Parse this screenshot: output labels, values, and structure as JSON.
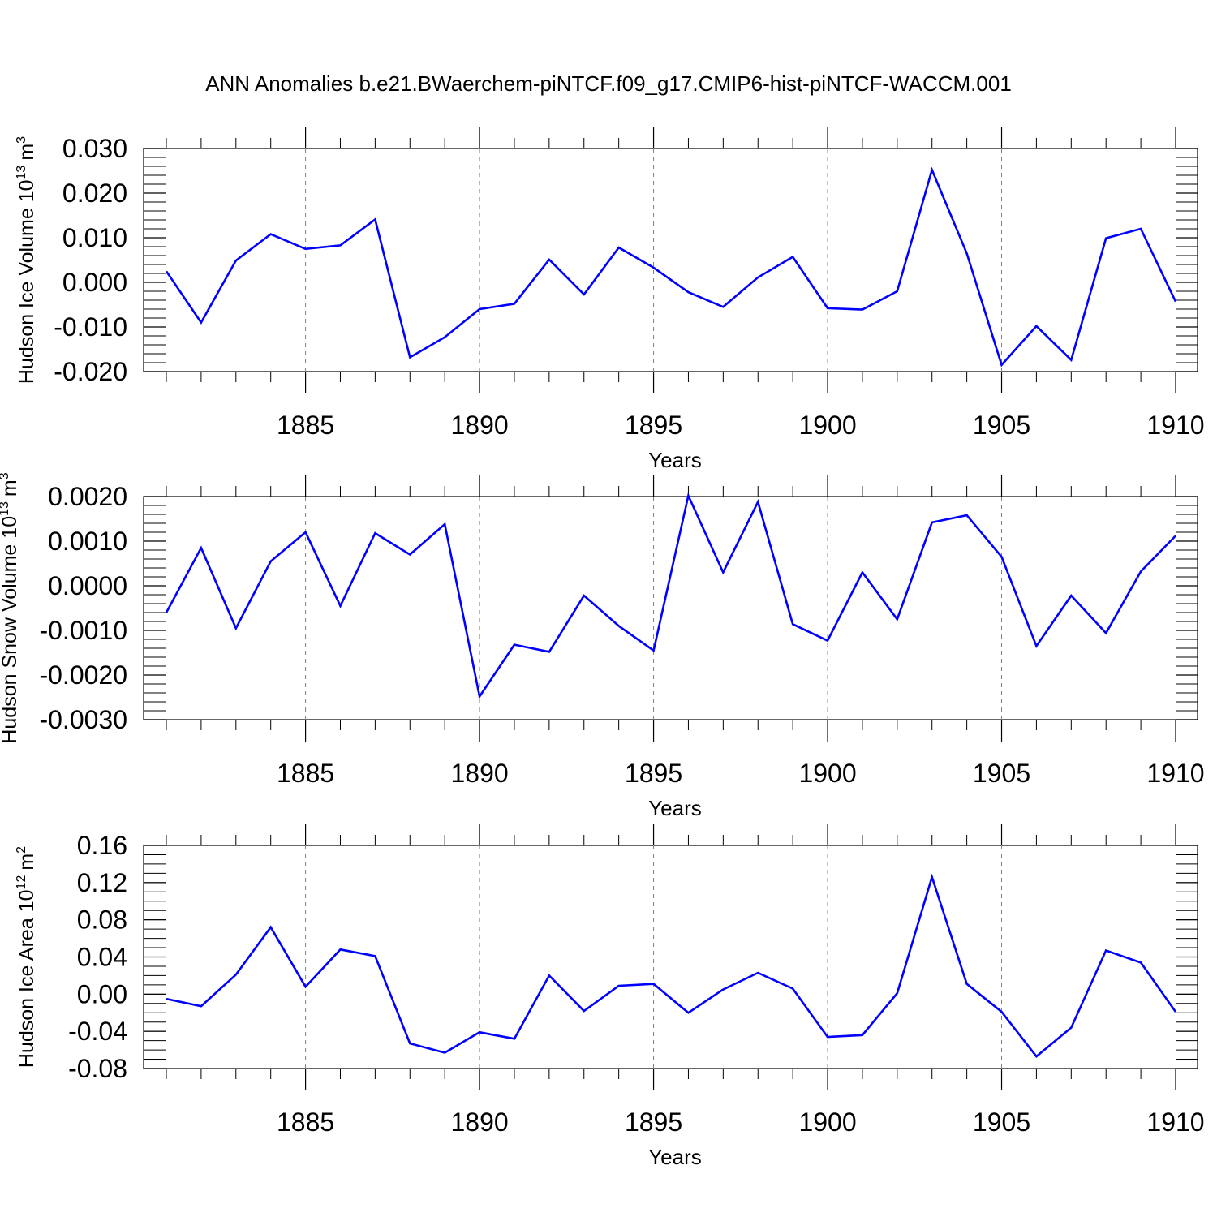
{
  "title": "ANN Anomalies b.e21.BWaerchem-piNTCF.f09_g17.CMIP6-hist-piNTCF-WACCM.001",
  "colors": {
    "line": "#0000ff",
    "axis": "#000000",
    "grid": "#808080"
  },
  "chart_data": [
    {
      "type": "line",
      "ylabel": "Hudson Ice Volume",
      "yunit_base": "10",
      "yunit_exp": "13",
      "yunit_m": "m",
      "yunit_pow": "3",
      "xlabel": "Years",
      "xlim": [
        1880.6,
        1910
      ],
      "ylim": [
        -0.02,
        0.03
      ],
      "x_ticks": [
        1885,
        1890,
        1895,
        1900,
        1905,
        1910
      ],
      "x_tick_labels": [
        "1885",
        "1890",
        "1895",
        "1900",
        "1905",
        "1910"
      ],
      "y_ticks": [
        0.03,
        0.02,
        0.01,
        0.0,
        -0.01,
        -0.02
      ],
      "y_tick_labels": [
        "0.030",
        "0.020",
        "0.010",
        "0.000",
        "-0.010",
        "-0.020"
      ],
      "y_minor_step": 0.002,
      "grid": "vertical dashed at major x ticks",
      "series": [
        {
          "name": "Hudson Ice Volume",
          "x": [
            1881,
            1882,
            1883,
            1884,
            1885,
            1886,
            1887,
            1888,
            1889,
            1890,
            1891,
            1892,
            1893,
            1894,
            1895,
            1896,
            1897,
            1898,
            1899,
            1900,
            1901,
            1902,
            1903,
            1904,
            1905,
            1906,
            1907,
            1908,
            1909,
            1910
          ],
          "y": [
            0.0025,
            -0.009,
            0.0049,
            0.0108,
            0.0075,
            0.0083,
            0.0141,
            -0.0168,
            -0.0123,
            -0.006,
            -0.0048,
            0.0051,
            -0.0027,
            0.0078,
            0.0033,
            -0.0022,
            -0.0055,
            0.0011,
            0.0057,
            -0.0058,
            -0.0061,
            -0.002,
            0.0252,
            0.0065,
            -0.0185,
            -0.0098,
            -0.0174,
            0.0099,
            0.012,
            -0.0043
          ]
        }
      ]
    },
    {
      "type": "line",
      "ylabel": "Hudson Snow Volume",
      "yunit_base": "10",
      "yunit_exp": "13",
      "yunit_m": "m",
      "yunit_pow": "3",
      "xlabel": "Years",
      "xlim": [
        1880.6,
        1910
      ],
      "ylim": [
        -0.003,
        0.002
      ],
      "x_ticks": [
        1885,
        1890,
        1895,
        1900,
        1905,
        1910
      ],
      "x_tick_labels": [
        "1885",
        "1890",
        "1895",
        "1900",
        "1905",
        "1910"
      ],
      "y_ticks": [
        0.002,
        0.001,
        0.0,
        -0.001,
        -0.002,
        -0.003
      ],
      "y_tick_labels": [
        "0.0020",
        "0.0010",
        "0.0000",
        "-0.0010",
        "-0.0020",
        "-0.0030"
      ],
      "y_minor_step": 0.0002,
      "grid": "vertical dashed at major x ticks",
      "series": [
        {
          "name": "Hudson Snow Volume",
          "x": [
            1881,
            1882,
            1883,
            1884,
            1885,
            1886,
            1887,
            1888,
            1889,
            1890,
            1891,
            1892,
            1893,
            1894,
            1895,
            1896,
            1897,
            1898,
            1899,
            1900,
            1901,
            1902,
            1903,
            1904,
            1905,
            1906,
            1907,
            1908,
            1909,
            1910
          ],
          "y": [
            -0.0006,
            0.00085,
            -0.00095,
            0.00055,
            0.0012,
            -0.00045,
            0.00118,
            0.0007,
            0.00138,
            -0.00248,
            -0.00132,
            -0.00148,
            -0.00022,
            -0.0009,
            -0.00145,
            0.00202,
            0.0003,
            0.00188,
            -0.00086,
            -0.00123,
            0.0003,
            -0.00075,
            0.00142,
            0.00158,
            0.00065,
            -0.00135,
            -0.00022,
            -0.00106,
            0.00032,
            0.00112
          ]
        }
      ]
    },
    {
      "type": "line",
      "ylabel": "Hudson Ice Area",
      "yunit_base": "10",
      "yunit_exp": "12",
      "yunit_m": "m",
      "yunit_pow": "2",
      "xlabel": "Years",
      "xlim": [
        1880.6,
        1910
      ],
      "ylim": [
        -0.08,
        0.16
      ],
      "x_ticks": [
        1885,
        1890,
        1895,
        1900,
        1905,
        1910
      ],
      "x_tick_labels": [
        "1885",
        "1890",
        "1895",
        "1900",
        "1905",
        "1910"
      ],
      "y_ticks": [
        0.16,
        0.12,
        0.08,
        0.04,
        0.0,
        -0.04,
        -0.08
      ],
      "y_tick_labels": [
        "0.16",
        "0.12",
        "0.08",
        "0.04",
        "0.00",
        "-0.04",
        "-0.08"
      ],
      "y_minor_step": 0.01,
      "grid": "vertical dashed at major x ticks",
      "series": [
        {
          "name": "Hudson Ice Area",
          "x": [
            1881,
            1882,
            1883,
            1884,
            1885,
            1886,
            1887,
            1888,
            1889,
            1890,
            1891,
            1892,
            1893,
            1894,
            1895,
            1896,
            1897,
            1898,
            1899,
            1900,
            1901,
            1902,
            1903,
            1904,
            1905,
            1906,
            1907,
            1908,
            1909,
            1910
          ],
          "y": [
            -0.005,
            -0.013,
            0.021,
            0.072,
            0.008,
            0.048,
            0.041,
            -0.053,
            -0.063,
            -0.041,
            -0.048,
            0.02,
            -0.018,
            0.009,
            0.011,
            -0.02,
            0.005,
            0.023,
            0.006,
            -0.046,
            -0.044,
            0.001,
            0.126,
            0.011,
            -0.019,
            -0.067,
            -0.036,
            0.047,
            0.034,
            -0.019
          ]
        }
      ]
    }
  ]
}
